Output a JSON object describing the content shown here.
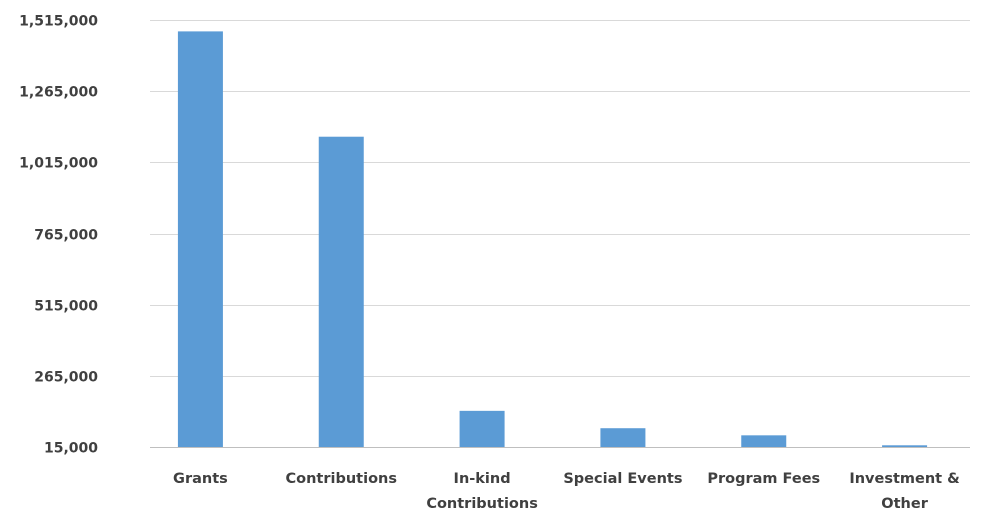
{
  "chart_data": {
    "type": "bar",
    "title": "",
    "xlabel": "",
    "ylabel": "",
    "categories": [
      [
        "Grants"
      ],
      [
        "Contributions"
      ],
      [
        "In-kind",
        "Contributions"
      ],
      [
        "Special Events"
      ],
      [
        "Program Fees"
      ],
      [
        "Investment &",
        "Other"
      ]
    ],
    "values": [
      1475000,
      1105000,
      142000,
      81000,
      56000,
      21000
    ],
    "ylim": [
      15000,
      1515000
    ],
    "yticks": [
      15000,
      265000,
      515000,
      765000,
      1015000,
      1265000,
      1515000
    ],
    "ytick_labels": [
      "15,000",
      "265,000",
      "515,000",
      "765,000",
      "1,015,000",
      "1,265,000",
      "1,515,000"
    ],
    "grid": true,
    "legend": "none",
    "bar_color": "#5b9bd5"
  }
}
